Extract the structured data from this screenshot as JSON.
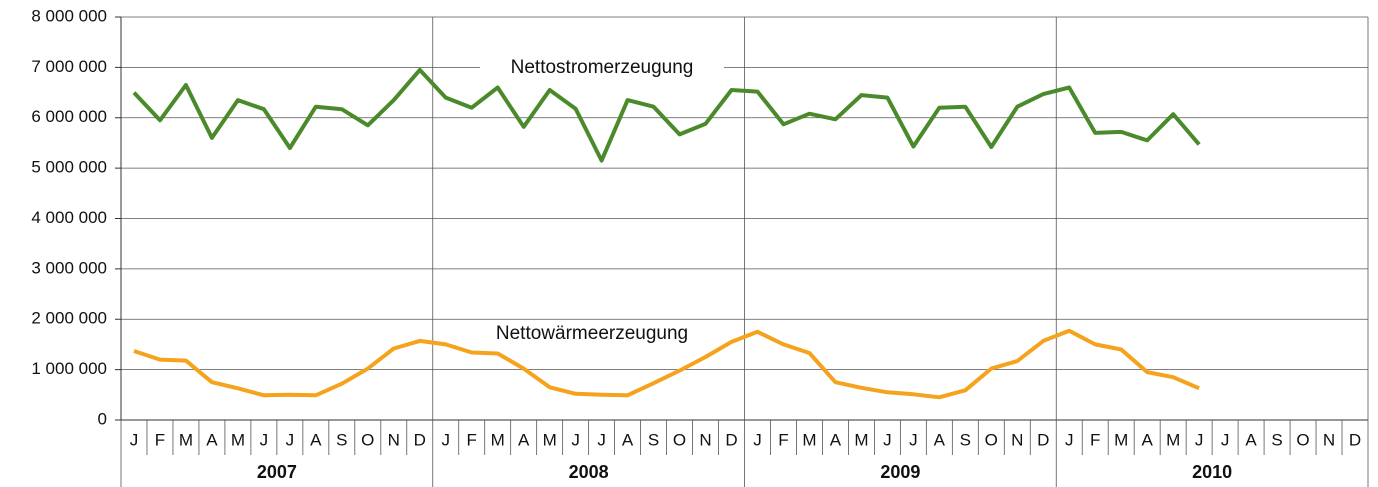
{
  "chart_data": {
    "type": "line",
    "categories": [
      "J",
      "F",
      "M",
      "A",
      "M",
      "J",
      "J",
      "A",
      "S",
      "O",
      "N",
      "D",
      "J",
      "F",
      "M",
      "A",
      "M",
      "J",
      "J",
      "A",
      "S",
      "O",
      "N",
      "D",
      "J",
      "F",
      "M",
      "A",
      "M",
      "J",
      "J",
      "A",
      "S",
      "O",
      "N",
      "D",
      "J",
      "F",
      "M",
      "A",
      "M",
      "J",
      "J",
      "A",
      "S",
      "O",
      "N",
      "D"
    ],
    "years": [
      "2007",
      "2008",
      "2009",
      "2010"
    ],
    "series": [
      {
        "name": "Nettostromerzeugung",
        "color": "#4a8a2a",
        "values": [
          6500000,
          5950000,
          6650000,
          5600000,
          6350000,
          6170000,
          5400000,
          6220000,
          6170000,
          5850000,
          6350000,
          6950000,
          6400000,
          6200000,
          6600000,
          5820000,
          6550000,
          6180000,
          5150000,
          6350000,
          6220000,
          5670000,
          5880000,
          6550000,
          6520000,
          5870000,
          6080000,
          5970000,
          6450000,
          6400000,
          5430000,
          6200000,
          6220000,
          5420000,
          6220000,
          6470000,
          6600000,
          5700000,
          5720000,
          5550000,
          6070000,
          5470000,
          null,
          null,
          null,
          null,
          null,
          null
        ]
      },
      {
        "name": "Nettowärmeerzeugung",
        "color": "#f5a21c",
        "values": [
          1370000,
          1200000,
          1180000,
          750000,
          630000,
          490000,
          500000,
          490000,
          720000,
          1020000,
          1420000,
          1570000,
          1500000,
          1340000,
          1320000,
          1020000,
          650000,
          520000,
          500000,
          490000,
          730000,
          980000,
          1250000,
          1550000,
          1750000,
          1500000,
          1330000,
          750000,
          640000,
          550000,
          510000,
          450000,
          590000,
          1020000,
          1170000,
          1570000,
          1770000,
          1500000,
          1400000,
          950000,
          850000,
          630000,
          null,
          null,
          null,
          null,
          null,
          null
        ]
      }
    ],
    "ylim": [
      0,
      8000000
    ],
    "yticks": [
      0,
      {
        "value": 1000000,
        "label": "1 000 000"
      },
      {
        "value": 2000000,
        "label": "2 000 000"
      },
      {
        "value": 3000000,
        "label": "3 000 000"
      },
      {
        "value": 4000000,
        "label": "4 000 000"
      },
      {
        "value": 5000000,
        "label": "5 000 000"
      },
      {
        "value": 6000000,
        "label": "6 000 000"
      },
      {
        "value": 7000000,
        "label": "7 000 000"
      },
      {
        "value": 8000000,
        "label": "8 000 000"
      }
    ],
    "grid": true
  }
}
